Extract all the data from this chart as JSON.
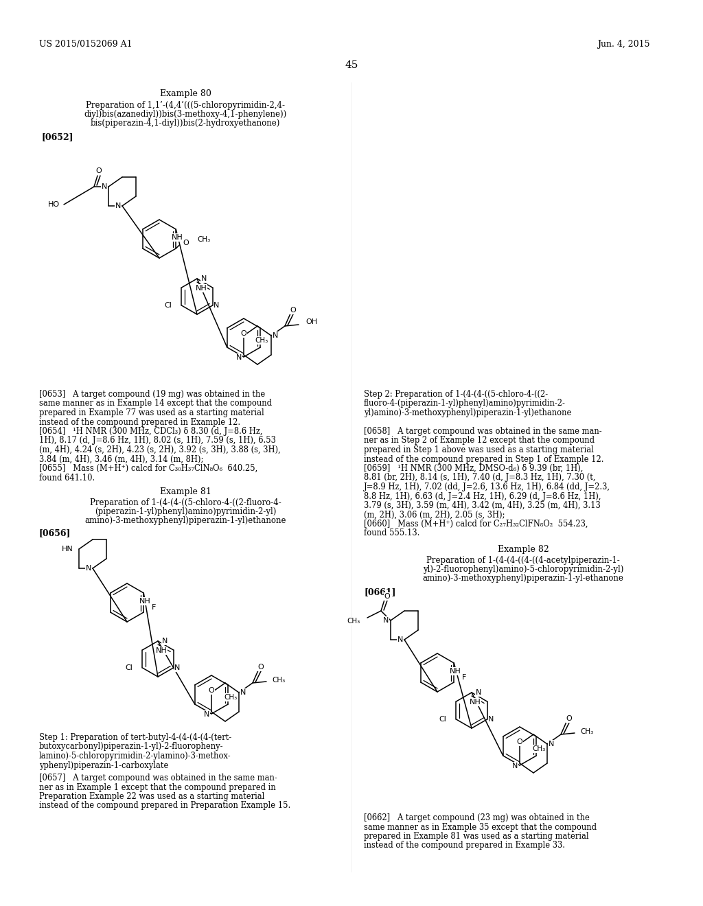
{
  "background_color": "#ffffff",
  "header_left": "US 2015/0152069 A1",
  "header_right": "Jun. 4, 2015",
  "page_number": "45",
  "example80_title": "Example 80",
  "example80_prep_line1": "Preparation of 1,1’-(4,4’(((5-chloropyrimidin-2,4-",
  "example80_prep_line2": "diyl)bis(azanediyl))bis(3-methoxy-4,1-phenylene))",
  "example80_prep_line3": "bis(piperazin-4,1-diyl))bis(2-hydroxyethanone)",
  "tag0652": "[0652]",
  "example81_title": "Example 81",
  "example81_prep_line1": "Preparation of 1-(4-(4-((5-chloro-4-((2-fluoro-4-",
  "example81_prep_line2": "(piperazin-1-yl)phenyl)amino)pyrimidin-2-yl)",
  "example81_prep_line3": "amino)-3-methoxyphenyl)piperazin-1-yl)ethanone",
  "tag0656": "[0656]",
  "step1_line1": "Step 1: Preparation of tert-butyl-4-(4-(4-(4-(tert-",
  "step1_line2": "butoxycarbonyl)piperazin-1-yl)-2-fluoropheny-",
  "step1_line3": "lamino)-5-chloropyrimidin-2-ylamino)-3-methox-",
  "step1_line4": "yphenyl)piperazin-1-carboxylate",
  "tag0657_line1": "[0657]   A target compound was obtained in the same man-",
  "tag0657_line2": "ner as in Example 1 except that the compound prepared in",
  "tag0657_line3": "Preparation Example 22 was used as a starting material",
  "tag0657_line4": "instead of the compound prepared in Preparation Example 15.",
  "step2_line1": "Step 2: Preparation of 1-(4-(4-((5-chloro-4-((2-",
  "step2_line2": "fluoro-4-(piperazin-1-yl)phenyl)amino)pyrimidin-2-",
  "step2_line3": "yl)amino)-3-methoxyphenyl)piperazin-1-yl)ethanone",
  "tag0658_line1": "[0658]   A target compound was obtained in the same man-",
  "tag0658_line2": "ner as in Step 2 of Example 12 except that the compound",
  "tag0658_line3": "prepared in Step 1 above was used as a starting material",
  "tag0658_line4": "instead of the compound prepared in Step 1 of Example 12.",
  "tag0659_line1": "[0659]   ¹H NMR (300 MHz, DMSO-d₆) δ 9.39 (br, 1H),",
  "tag0659_line2": "8.81 (br, 2H), 8.14 (s, 1H), 7.40 (d, J=8.3 Hz, 1H), 7.30 (t,",
  "tag0659_line3": "J=8.9 Hz, 1H), 7.02 (dd, J=2.6, 13.6 Hz, 1H), 6.84 (dd, J=2.3,",
  "tag0659_line4": "8.8 Hz, 1H), 6.63 (d, J=2.4 Hz, 1H), 6.29 (d, J=8.6 Hz, 1H),",
  "tag0659_line5": "3.79 (s, 3H), 3.59 (m, 4H), 3.42 (m, 4H), 3.25 (m, 4H), 3.13",
  "tag0659_line6": "(m, 2H), 3.06 (m, 2H), 2.05 (s, 3H);",
  "tag0660_line1": "[0660]   Mass (M+H⁺) calcd for C₂₇H₃₂ClFN₈O₂  554.23,",
  "tag0660_line2": "found 555.13.",
  "example82_title": "Example 82",
  "example82_prep_line1": "Preparation of 1-(4-(4-((4-((4-acetylpiperazin-1-",
  "example82_prep_line2": "yl)-2-fluorophenyl)amino)-5-chloropyrimidin-2-yl)",
  "example82_prep_line3": "amino)-3-methoxyphenyl)piperazin-1-yl-ethanone",
  "tag0661": "[0661]",
  "tag0662_line1": "[0662]   A target compound (23 mg) was obtained in the",
  "tag0662_line2": "same manner as in Example 35 except that the compound",
  "tag0662_line3": "prepared in Example 81 was used as a starting material",
  "tag0662_line4": "instead of the compound prepared in Example 33.",
  "tag0653_line1": "[0653]   A target compound (19 mg) was obtained in the",
  "tag0653_line2": "same manner as in Example 14 except that the compound",
  "tag0653_line3": "prepared in Example 77 was used as a starting material",
  "tag0653_line4": "instead of the compound prepared in Example 12.",
  "tag0654_line1": "[0654]   ¹H NMR (300 MHz, CDCl₃) δ 8.30 (d, J=8.6 Hz,",
  "tag0654_line2": "1H), 8.17 (d, J=8.6 Hz, 1H), 8.02 (s, 1H), 7.59 (s, 1H), 6.53",
  "tag0654_line3": "(m, 4H), 4.24 (s, 2H), 4.23 (s, 2H), 3.92 (s, 3H), 3.88 (s, 3H),",
  "tag0654_line4": "3.84 (m, 4H), 3.46 (m, 4H), 3.14 (m, 8H);",
  "tag0655_line1": "[0655]   Mass (M+H⁺) calcd for C₃₀H₃₇ClN₈O₆  640.25,",
  "tag0655_line2": "found 641.10."
}
